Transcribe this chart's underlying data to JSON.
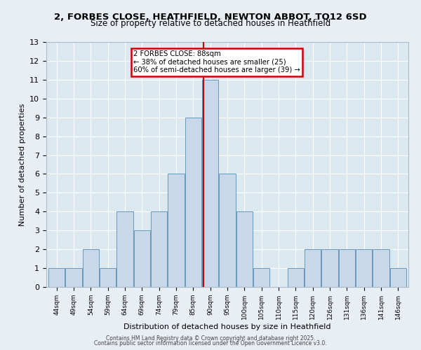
{
  "title_line1": "2, FORBES CLOSE, HEATHFIELD, NEWTON ABBOT, TQ12 6SD",
  "title_line2": "Size of property relative to detached houses in Heathfield",
  "xlabel": "Distribution of detached houses by size in Heathfield",
  "ylabel": "Number of detached properties",
  "categories": [
    "44sqm",
    "49sqm",
    "54sqm",
    "59sqm",
    "64sqm",
    "69sqm",
    "74sqm",
    "79sqm",
    "85sqm",
    "90sqm",
    "95sqm",
    "100sqm",
    "105sqm",
    "110sqm",
    "115sqm",
    "120sqm",
    "126sqm",
    "131sqm",
    "136sqm",
    "141sqm",
    "146sqm"
  ],
  "values": [
    1,
    1,
    2,
    1,
    4,
    3,
    4,
    6,
    9,
    11,
    6,
    4,
    1,
    0,
    1,
    2,
    2,
    2,
    2,
    2,
    1
  ],
  "bar_color": "#c8d8e8",
  "bar_edge_color": "#6699bb",
  "annotation_title": "2 FORBES CLOSE: 88sqm",
  "annotation_line1": "← 38% of detached houses are smaller (25)",
  "annotation_line2": "60% of semi-detached houses are larger (39) →",
  "annotation_box_color": "#cc0000",
  "subject_line_color": "#cc0000",
  "ylim": [
    0,
    13
  ],
  "yticks": [
    0,
    1,
    2,
    3,
    4,
    5,
    6,
    7,
    8,
    9,
    10,
    11,
    12,
    13
  ],
  "footer_line1": "Contains HM Land Registry data © Crown copyright and database right 2025.",
  "footer_line2": "Contains public sector information licensed under the Open Government Licence v3.0.",
  "bg_color": "#e8eef4",
  "plot_bg_color": "#dce8f0"
}
